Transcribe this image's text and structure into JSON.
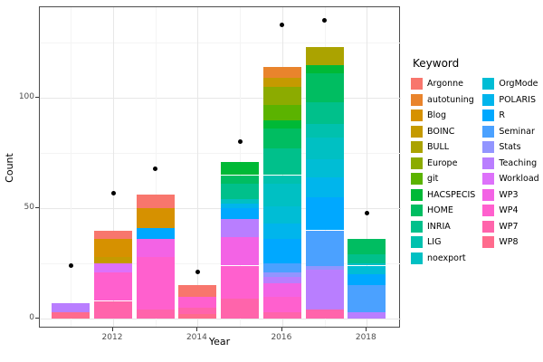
{
  "axes": {
    "x": {
      "title": "Year",
      "tick_labels": [
        "2012",
        "2014",
        "2016",
        "2018"
      ],
      "tick_years": [
        2012,
        2014,
        2016,
        2018
      ]
    },
    "y": {
      "title": "Count",
      "tick_labels": [
        "0",
        "50",
        "100"
      ],
      "tick_values": [
        0,
        50,
        100
      ]
    }
  },
  "legend": {
    "title": "Keyword",
    "column_split": [
      12,
      11
    ]
  },
  "chart_data": {
    "type": "bar",
    "stacked": true,
    "title": "",
    "xlabel": "Year",
    "ylabel": "Count",
    "ylim": [
      0,
      145
    ],
    "grid": true,
    "legend_position": "right",
    "x": [
      2011,
      2012,
      2013,
      2014,
      2015,
      2016,
      2017,
      2018
    ],
    "keywords": [
      "Argonne",
      "autotuning",
      "Blog",
      "BOINC",
      "BULL",
      "Europe",
      "git",
      "HACSPECIS",
      "HOME",
      "INRIA",
      "LIG",
      "noexport",
      "OrgMode",
      "POLARIS",
      "R",
      "Seminar",
      "Stats",
      "Teaching",
      "Workload",
      "WP3",
      "WP4",
      "WP7",
      "WP8"
    ],
    "colors": {
      "Argonne": "#F8766D",
      "autotuning": "#E9842C",
      "Blog": "#D69100",
      "BOINC": "#C59A00",
      "BULL": "#ABA300",
      "Europe": "#8CAB00",
      "git": "#5BB300",
      "HACSPECIS": "#00B936",
      "HOME": "#00BD61",
      "INRIA": "#00C08B",
      "LIG": "#00C1AE",
      "noexport": "#00C0C3",
      "OrgMode": "#00BDD5",
      "POLARIS": "#00B5EC",
      "R": "#00A8FF",
      "Seminar": "#4BA1FF",
      "Stats": "#9295FF",
      "Teaching": "#B97EFF",
      "Workload": "#DD71FA",
      "WP3": "#F363E5",
      "WP4": "#FF60CE",
      "WP7": "#FF64AB",
      "WP8": "#FF6B8D"
    },
    "bars": [
      {
        "year": 2011,
        "total": 7,
        "segments": [
          [
            "WP8",
            3
          ],
          [
            "Teaching",
            4
          ]
        ]
      },
      {
        "year": 2012,
        "total": 40,
        "segments": [
          [
            "WP7",
            8
          ],
          [
            "WP4",
            13
          ],
          [
            "Workload",
            4
          ],
          [
            "BOINC",
            3
          ],
          [
            "Blog",
            8
          ],
          [
            "Argonne",
            4
          ]
        ]
      },
      {
        "year": 2013,
        "total": 56,
        "segments": [
          [
            "WP7",
            4
          ],
          [
            "WP4",
            24
          ],
          [
            "WP3",
            8
          ],
          [
            "R",
            5
          ],
          [
            "Blog",
            9
          ],
          [
            "Argonne",
            6
          ]
        ]
      },
      {
        "year": 2014,
        "total": 15,
        "segments": [
          [
            "WP8",
            2
          ],
          [
            "WP7",
            3
          ],
          [
            "WP4",
            5
          ],
          [
            "Argonne",
            5
          ]
        ]
      },
      {
        "year": 2015,
        "total": 71,
        "segments": [
          [
            "WP7",
            9
          ],
          [
            "WP4",
            15
          ],
          [
            "WP3",
            13
          ],
          [
            "Teaching",
            8
          ],
          [
            "R",
            5
          ],
          [
            "POLARIS",
            2
          ],
          [
            "noexport",
            2
          ],
          [
            "INRIA",
            7
          ],
          [
            "HOME",
            4
          ],
          [
            "HACSPECIS",
            6
          ]
        ]
      },
      {
        "year": 2016,
        "total": 114,
        "segments": [
          [
            "WP7",
            3
          ],
          [
            "WP4",
            7
          ],
          [
            "WP3",
            6
          ],
          [
            "Teaching",
            3
          ],
          [
            "Stats",
            2
          ],
          [
            "Seminar",
            4
          ],
          [
            "R",
            11
          ],
          [
            "POLARIS",
            7
          ],
          [
            "OrgMode",
            8
          ],
          [
            "noexport",
            10
          ],
          [
            "LIG",
            4
          ],
          [
            "INRIA",
            12
          ],
          [
            "HOME",
            9
          ],
          [
            "HACSPECIS",
            4
          ],
          [
            "git",
            7
          ],
          [
            "Europe",
            8
          ],
          [
            "BOINC",
            4
          ],
          [
            "autotuning",
            5
          ]
        ]
      },
      {
        "year": 2017,
        "total": 123,
        "segments": [
          [
            "WP7",
            4
          ],
          [
            "Teaching",
            18
          ],
          [
            "Stats",
            2
          ],
          [
            "Seminar",
            16
          ],
          [
            "R",
            15
          ],
          [
            "POLARIS",
            9
          ],
          [
            "OrgMode",
            8
          ],
          [
            "noexport",
            10
          ],
          [
            "LIG",
            6
          ],
          [
            "INRIA",
            10
          ],
          [
            "HOME",
            13
          ],
          [
            "HACSPECIS",
            4
          ],
          [
            "BULL",
            8
          ]
        ]
      },
      {
        "year": 2018,
        "total": 36,
        "segments": [
          [
            "Teaching",
            3
          ],
          [
            "Seminar",
            12
          ],
          [
            "R",
            5
          ],
          [
            "OrgMode",
            4
          ],
          [
            "noexport",
            1
          ],
          [
            "INRIA",
            4
          ],
          [
            "HOME",
            7
          ]
        ]
      }
    ],
    "points": [
      {
        "year": 2011,
        "value": 24
      },
      {
        "year": 2012,
        "value": 57
      },
      {
        "year": 2013,
        "value": 68
      },
      {
        "year": 2014,
        "value": 21
      },
      {
        "year": 2015,
        "value": 80
      },
      {
        "year": 2016,
        "value": 133
      },
      {
        "year": 2017,
        "value": 135
      },
      {
        "year": 2018,
        "value": 48
      }
    ],
    "point_color": "#000000"
  }
}
